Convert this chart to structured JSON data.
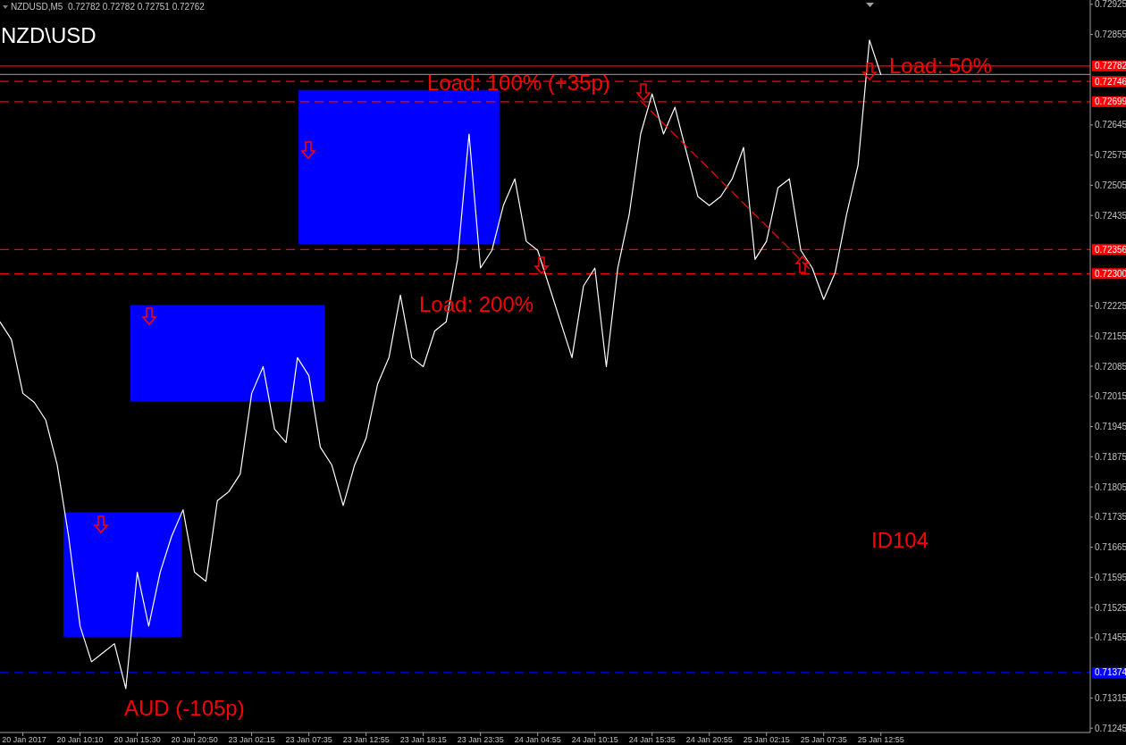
{
  "chart_data": {
    "type": "line",
    "title": "NZD\\USD",
    "subtitle": "NZDUSD,M5  0.72782 0.72782 0.72751 0.72762",
    "annotations": [
      "Load: 100% (+35p)",
      "Load: 50%",
      "Load: 200%",
      "AUD (-105p)",
      "ID104"
    ],
    "ylim": [
      0.71235,
      0.72935
    ],
    "categories": [
      null,
      null,
      "20 Jan 2017",
      null,
      null,
      null,
      null,
      "20 Jan 10:10",
      null,
      null,
      null,
      null,
      "20 Jan 15:30",
      null,
      null,
      null,
      null,
      "20 Jan 20:50",
      null,
      null,
      null,
      null,
      "23 Jan 02:15",
      null,
      null,
      null,
      null,
      "23 Jan 07:35",
      null,
      null,
      null,
      null,
      "23 Jan 12:55",
      null,
      null,
      null,
      null,
      "23 Jan 18:15",
      null,
      null,
      null,
      null,
      "23 Jan 23:35",
      null,
      null,
      null,
      null,
      "24 Jan 04:55",
      null,
      null,
      null,
      null,
      "24 Jan 10:15",
      null,
      null,
      null,
      null,
      "24 Jan 15:35",
      null,
      null,
      null,
      null,
      "24 Jan 20:55",
      null,
      null,
      null,
      null,
      "25 Jan 02:15",
      null,
      null,
      null,
      null,
      "25 Jan 07:35",
      null,
      null,
      null,
      null,
      "25 Jan 12:55",
      null,
      null,
      null,
      null,
      null,
      null,
      null,
      null,
      null,
      null,
      null,
      null,
      null,
      null,
      null,
      null,
      null,
      null
    ],
    "yticks": [
      0.72925,
      0.72855,
      0.72645,
      0.72575,
      0.72505,
      0.72435,
      0.72225,
      0.72155,
      0.72085,
      0.72015,
      0.71945,
      0.71875,
      0.71805,
      0.71735,
      0.71665,
      0.71595,
      0.71525,
      0.71455,
      0.71315,
      0.71245
    ],
    "bands": [
      {
        "axis": "y",
        "from": 0.71457,
        "to": 0.71746,
        "color": "#0000ff"
      },
      {
        "axis": "y",
        "from": 0.72003,
        "to": 0.72227,
        "color": "#0000ff"
      },
      {
        "axis": "y",
        "from": 0.72369,
        "to": 0.72726,
        "color": "#0000ff"
      }
    ],
    "ref_lines": [
      {
        "axis": "y",
        "value": 0.72782,
        "label": "0.72782",
        "color": "#ff0000",
        "line_style": "solid"
      },
      {
        "axis": "y",
        "value": 0.72762,
        "label": null,
        "color": "#808080",
        "line_style": "solid"
      },
      {
        "axis": "y",
        "value": 0.72746,
        "label": "0.72746",
        "color": "#ff0000",
        "line_style": "dashed"
      },
      {
        "axis": "y",
        "value": 0.72699,
        "label": "0.72699",
        "color": "#ff0000",
        "line_style": "dashed"
      },
      {
        "axis": "y",
        "value": 0.72356,
        "label": "0.72356",
        "color": "#ff0000",
        "line_style": "dashed"
      },
      {
        "axis": "y",
        "value": 0.723,
        "label": "0.72300",
        "color": "#ff0000",
        "line_style": "dashed"
      },
      {
        "axis": "y",
        "value": 0.71374,
        "label": "0.71374",
        "color": "#0000ff",
        "line_style": "dashed"
      }
    ],
    "series": [
      {
        "type": "line",
        "color": "#ffffff",
        "line_style": "solid",
        "values": [
          0.72188,
          0.72147,
          0.72022,
          0.72001,
          0.7196,
          0.71856,
          0.7169,
          0.71482,
          0.71399,
          0.7142,
          0.71441,
          0.71337,
          0.71607,
          0.71482,
          0.71607,
          0.7169,
          0.71752,
          0.71607,
          0.71586,
          0.71773,
          0.71794,
          0.71835,
          0.72022,
          0.72084,
          0.71939,
          0.71908,
          0.72105,
          0.72063,
          0.71897,
          0.71856,
          0.71762,
          0.71856,
          0.71918,
          0.72043,
          0.72105,
          0.7225,
          0.72105,
          0.72084,
          0.72167,
          0.72188,
          0.72333,
          0.72624,
          0.72313,
          0.72354,
          0.72458,
          0.7252,
          0.72375,
          0.72354,
          0.72271,
          0.72188,
          0.72105,
          0.72271,
          0.72313,
          0.72084,
          0.72313,
          0.72437,
          0.72624,
          0.72717,
          0.72624,
          0.72686,
          0.72582,
          0.72479,
          0.72458,
          0.72479,
          0.7252,
          0.72593,
          0.72333,
          0.72375,
          0.72499,
          0.7252,
          0.72354,
          0.72313,
          0.7224,
          0.72302,
          0.72437,
          0.72551,
          0.72842,
          0.72762,
          null,
          null,
          null,
          null,
          null,
          null,
          null,
          null,
          null,
          null,
          null,
          null,
          null,
          null,
          null,
          null,
          null,
          null
        ]
      },
      {
        "type": "line",
        "color": "#ff0000",
        "line_style": "dashed",
        "values": [
          null,
          null,
          null,
          null,
          null,
          null,
          null,
          null,
          null,
          null,
          null,
          null,
          null,
          null,
          null,
          null,
          null,
          null,
          null,
          null,
          null,
          null,
          null,
          null,
          null,
          null,
          null,
          null,
          null,
          null,
          null,
          null,
          null,
          null,
          null,
          null,
          null,
          null,
          null,
          null,
          null,
          null,
          null,
          null,
          null,
          null,
          null,
          null,
          null,
          null,
          null,
          null,
          null,
          null,
          null,
          null,
          0.72701,
          0.72675,
          0.72648,
          0.72622,
          0.72595,
          0.72569,
          0.72543,
          0.72516,
          0.7249,
          0.72463,
          0.72437,
          0.72411,
          0.72384,
          0.72358,
          0.72331,
          0.72305,
          null,
          null,
          null,
          null,
          null,
          null,
          null,
          null,
          null,
          null,
          null,
          null,
          null,
          null,
          null,
          null,
          null,
          null,
          null,
          null,
          null,
          null,
          null,
          null
        ]
      }
    ]
  }
}
